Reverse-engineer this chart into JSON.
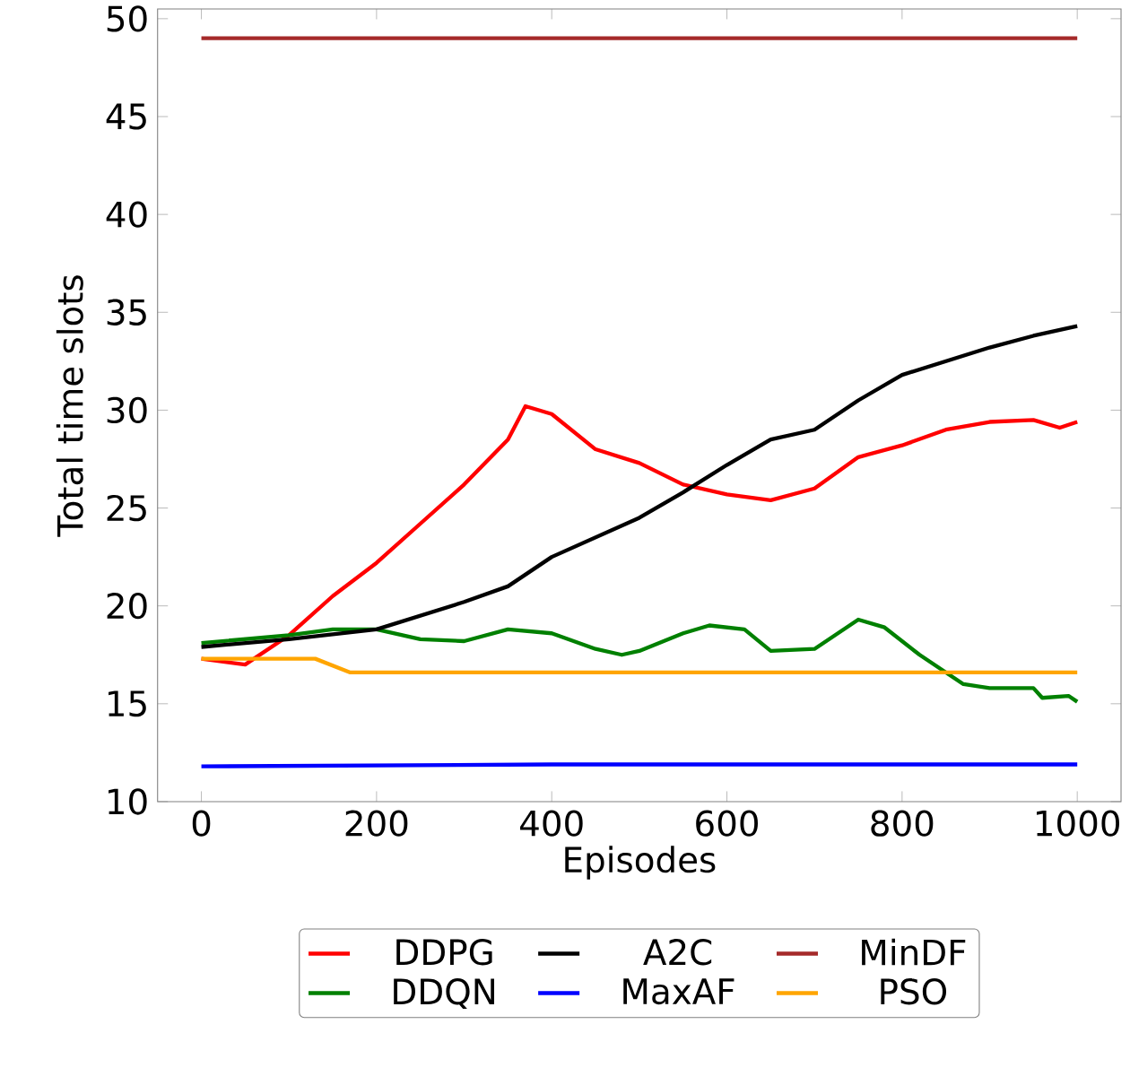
{
  "chart_data": {
    "type": "line",
    "xlabel": "Episodes",
    "ylabel": "Total time slots",
    "xlim": [
      -50,
      1050
    ],
    "ylim": [
      10,
      50.5
    ],
    "xticks": [
      0,
      200,
      400,
      600,
      800,
      1000
    ],
    "yticks": [
      10,
      15,
      20,
      25,
      30,
      35,
      40,
      45,
      50
    ],
    "legend": "bottom",
    "grid": false,
    "marker": "none",
    "line_style": "solid",
    "series": [
      {
        "name": "DDPG",
        "color": "#ff0000",
        "x": [
          0,
          50,
          100,
          150,
          200,
          250,
          300,
          350,
          370,
          400,
          450,
          500,
          550,
          600,
          650,
          700,
          750,
          800,
          850,
          900,
          950,
          980,
          1000
        ],
        "values": [
          17.3,
          17.0,
          18.5,
          20.5,
          22.2,
          24.2,
          26.2,
          28.5,
          30.2,
          29.8,
          28.0,
          27.3,
          26.2,
          25.7,
          25.4,
          26.0,
          27.6,
          28.2,
          29.0,
          29.4,
          29.5,
          29.1,
          29.4
        ]
      },
      {
        "name": "DDQN",
        "color": "#008000",
        "x": [
          0,
          100,
          150,
          200,
          250,
          300,
          350,
          400,
          450,
          480,
          500,
          550,
          580,
          620,
          650,
          700,
          750,
          780,
          820,
          870,
          900,
          950,
          960,
          990,
          1000
        ],
        "values": [
          18.1,
          18.5,
          18.8,
          18.8,
          18.3,
          18.2,
          18.8,
          18.6,
          17.8,
          17.5,
          17.7,
          18.6,
          19.0,
          18.8,
          17.7,
          17.8,
          19.3,
          18.9,
          17.5,
          16.0,
          15.8,
          15.8,
          15.3,
          15.4,
          15.1
        ]
      },
      {
        "name": "A2C",
        "color": "#000000",
        "x": [
          0,
          100,
          200,
          250,
          300,
          350,
          400,
          450,
          500,
          550,
          600,
          650,
          700,
          750,
          800,
          850,
          900,
          950,
          1000
        ],
        "values": [
          17.9,
          18.3,
          18.8,
          19.5,
          20.2,
          21.0,
          22.5,
          23.5,
          24.5,
          25.8,
          27.2,
          28.5,
          29.0,
          30.5,
          31.8,
          32.5,
          33.2,
          33.8,
          34.3
        ]
      },
      {
        "name": "MaxAF",
        "color": "#0000ff",
        "x": [
          0,
          400,
          1000
        ],
        "values": [
          11.8,
          11.9,
          11.9
        ]
      },
      {
        "name": "MinDF",
        "color": "#a52a2a",
        "x": [
          0,
          1000
        ],
        "values": [
          49,
          49
        ]
      },
      {
        "name": "PSO",
        "color": "#ffa500",
        "x": [
          0,
          130,
          170,
          1000
        ],
        "values": [
          17.3,
          17.3,
          16.6,
          16.6
        ]
      }
    ]
  }
}
